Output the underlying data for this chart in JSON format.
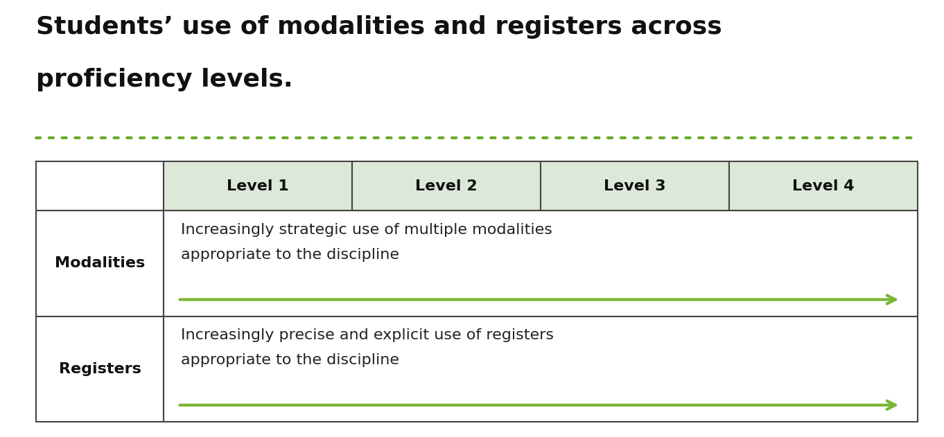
{
  "title_line1": "Students’ use of modalities and registers across",
  "title_line2": "proficiency levels.",
  "title_fontsize": 26,
  "title_fontweight": "bold",
  "title_color": "#111111",
  "bg_color": "#ffffff",
  "header_bg": "#dce8d8",
  "header_labels": [
    "Level 1",
    "Level 2",
    "Level 3",
    "Level 4"
  ],
  "row_labels": [
    "Modalities",
    "Registers"
  ],
  "row_texts": [
    "Increasingly strategic use of multiple modalities\nappropriate to the discipline",
    "Increasingly precise and explicit use of registers\nappropriate to the discipline"
  ],
  "arrow_color": "#7ab535",
  "dotted_line_color": "#6aaa2a",
  "table_border_color": "#444444",
  "text_fontsize": 16,
  "label_fontsize": 16
}
